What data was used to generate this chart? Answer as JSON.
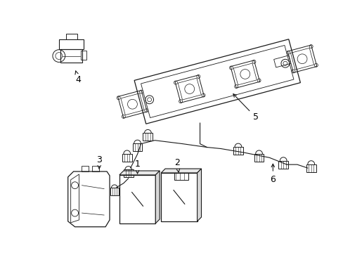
{
  "background_color": "#ffffff",
  "line_color": "#1a1a1a",
  "label_color": "#000000",
  "fig_width": 4.89,
  "fig_height": 3.6,
  "dpi": 100,
  "label_fontsize": 9
}
